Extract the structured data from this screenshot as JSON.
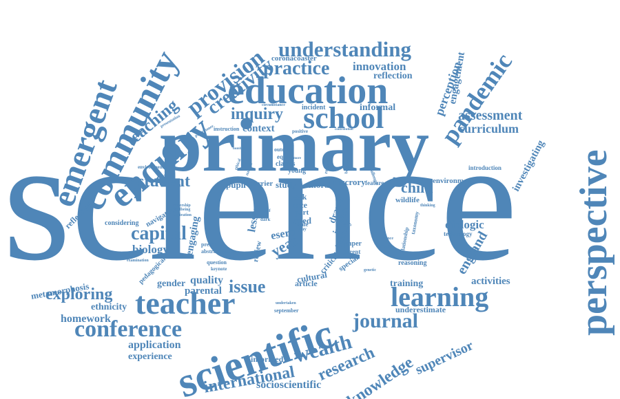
{
  "word_cloud": {
    "color": "#4f86b8",
    "words": {
      "science": "science",
      "primary": "primary",
      "education": "education",
      "school": "school",
      "scientific": "scientific",
      "teacher": "teacher",
      "learning": "learning",
      "perspective": "perspective",
      "community": "community",
      "enquiry": "enquiry",
      "emergent": "emergent",
      "provision": "provision",
      "creativity": "creativity",
      "teaching": "teaching",
      "understanding": "understanding",
      "practice": "practice",
      "innovation": "innovation",
      "reflection": "reflection",
      "coronacoaster": "coronacoaster",
      "pandemic": "pandemic",
      "perception": "perception",
      "engagement": "engagement",
      "assessment": "assessment",
      "curriculum": "curriculum",
      "investigating": "investigating",
      "inquiry": "inquiry",
      "context": "context",
      "informal": "informal",
      "incident": "incident",
      "student": "student",
      "capital": "capital",
      "biology": "biology",
      "reflective": "reflective",
      "considering": "considering",
      "metamorphosis": "metamorphosis",
      "exploring": "exploring",
      "ethnicity": "ethnicity",
      "homework": "homework",
      "conference": "conference",
      "application": "application",
      "experience": "experience",
      "gender": "gender",
      "quality": "quality",
      "parental": "parental",
      "issue": "issue",
      "article": "article",
      "training": "training",
      "journal": "journal",
      "wealth": "wealth",
      "research": "research",
      "knowledge": "knowledge",
      "supervisor": "supervisor",
      "international": "international",
      "socioscientific": "socioscientific",
      "informed": "informed",
      "child": "child",
      "environment": "environment",
      "wildlife": "wildlife",
      "dialogic": "dialogic",
      "england": "england",
      "activities": "activities",
      "introduction": "introduction",
      "year": "year",
      "lesson": "lesson",
      "drama": "drama",
      "impact": "impact",
      "identity": "identity",
      "review": "review",
      "critical": "critical",
      "cultural": "cultural",
      "special": "special",
      "paper": "paper",
      "parent": "parent",
      "reasoning": "reasoning",
      "technology": "technology",
      "relationship": "relationship",
      "underestimate": "underestimate",
      "pupil": "pupil",
      "barrier": "barrier",
      "study": "study",
      "moral": "moral",
      "mccrory": "mccrory",
      "feature": "feature",
      "book": "book",
      "race": "race",
      "part": "part",
      "aged": "aged",
      "esera": "esera",
      "outdoor": "outdoor",
      "equity": "equity",
      "classes": "classes",
      "young": "young",
      "navigating": "navigating",
      "engaging": "engaging",
      "pedagogical": "pedagogical",
      "present": "present",
      "abstract": "abstract",
      "question": "question",
      "keynote": "keynote",
      "ongoing": "ongoing",
      "energy": "energy",
      "play": "play",
      "wale": "wale",
      "september": "september",
      "undertaken": "undertaken",
      "circumstance": "circumstance",
      "presentation": "presentation",
      "practitioner": "practitioner",
      "instruction": "instruction",
      "positive": "positive",
      "environmental": "environmental",
      "examination": "examination",
      "aspiration": "aspiration",
      "wellbeing": "wellbeing",
      "leadership": "leadership",
      "number": "number",
      "researcher": "researcher",
      "beginner": "beginner",
      "challenge": "challenge",
      "ethical": "ethical",
      "natural": "natural",
      "thinking": "thinking",
      "taxonomy": "taxonomy",
      "enhance": "enhance",
      "affective": "affective",
      "genetic": "genetic",
      "dark": "dark",
      "self": "self",
      "contribution": "contribution",
      "more": "more",
      "world": "world"
    }
  }
}
